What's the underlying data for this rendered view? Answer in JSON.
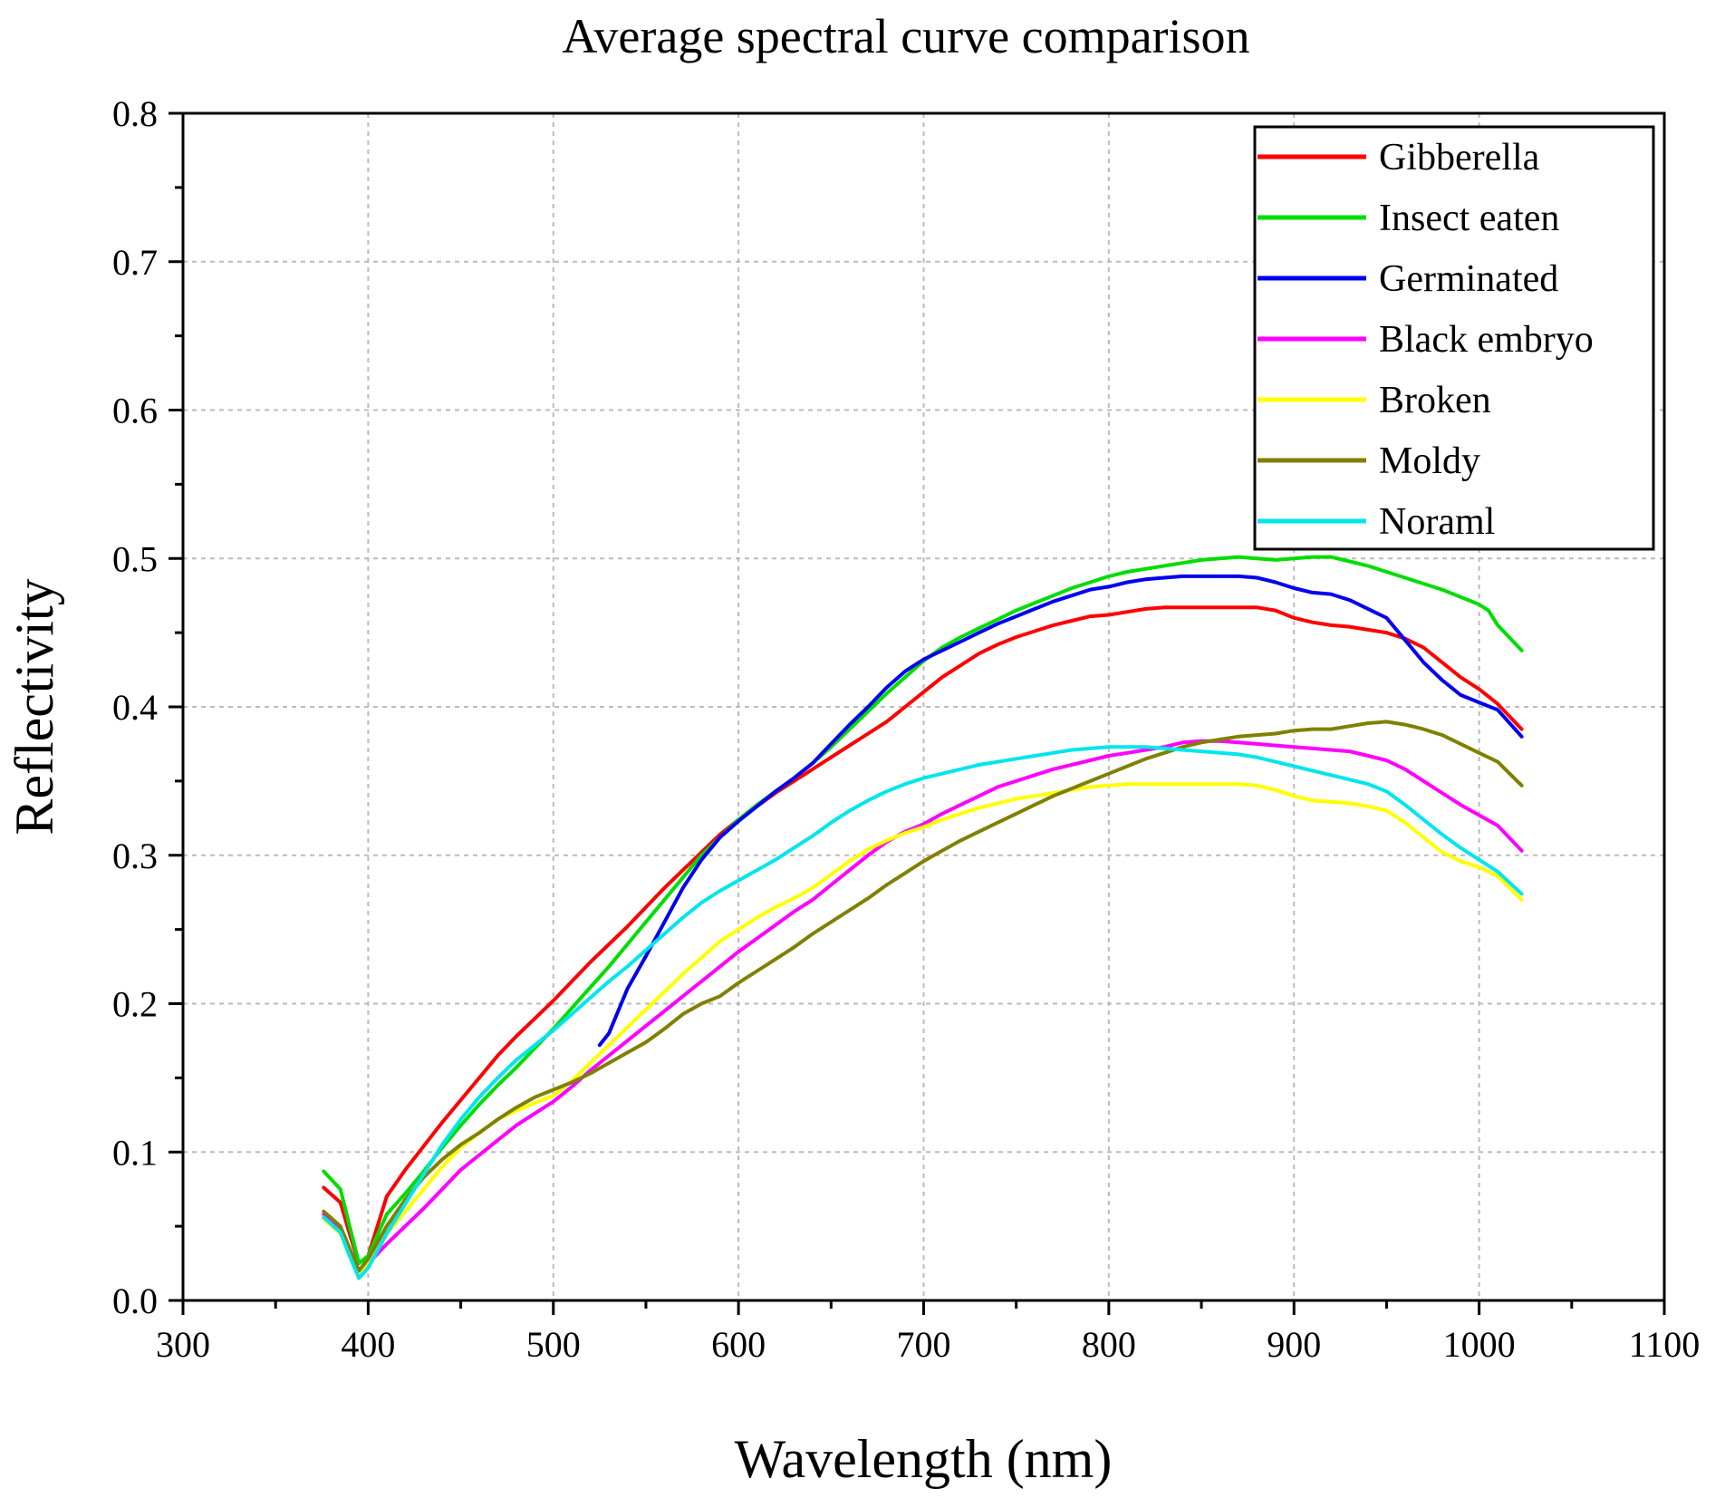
{
  "chart_data": {
    "type": "line",
    "title": "Average spectral curve comparison",
    "xlabel": "Wavelength (nm)",
    "ylabel": "Reflectivity",
    "xlim": [
      300,
      1100
    ],
    "ylim": [
      0.0,
      0.8
    ],
    "xticks": [
      "300",
      "400",
      "500",
      "600",
      "700",
      "800",
      "900",
      "1000",
      "1100"
    ],
    "yticks": [
      "0.0",
      "0.1",
      "0.2",
      "0.3",
      "0.4",
      "0.5",
      "0.6",
      "0.7",
      "0.8"
    ],
    "grid": true,
    "legend_position": "top-right",
    "series": [
      {
        "name": "Gibberella",
        "color": "#ff0000",
        "x": [
          376,
          385,
          390,
          395,
          400,
          405,
          410,
          420,
          430,
          440,
          450,
          460,
          470,
          480,
          490,
          500,
          510,
          520,
          530,
          540,
          550,
          560,
          570,
          580,
          590,
          600,
          610,
          620,
          630,
          640,
          650,
          660,
          670,
          680,
          690,
          700,
          710,
          720,
          730,
          740,
          750,
          760,
          770,
          780,
          790,
          800,
          810,
          820,
          830,
          840,
          850,
          860,
          870,
          880,
          890,
          900,
          910,
          920,
          930,
          940,
          950,
          960,
          970,
          980,
          990,
          1000,
          1010,
          1023
        ],
        "y": [
          0.076,
          0.066,
          0.045,
          0.025,
          0.03,
          0.05,
          0.07,
          0.088,
          0.104,
          0.12,
          0.135,
          0.15,
          0.165,
          0.178,
          0.19,
          0.202,
          0.215,
          0.228,
          0.24,
          0.252,
          0.265,
          0.278,
          0.29,
          0.302,
          0.314,
          0.324,
          0.333,
          0.342,
          0.35,
          0.358,
          0.366,
          0.374,
          0.382,
          0.39,
          0.4,
          0.41,
          0.42,
          0.428,
          0.436,
          0.442,
          0.447,
          0.451,
          0.455,
          0.458,
          0.461,
          0.462,
          0.464,
          0.466,
          0.467,
          0.467,
          0.467,
          0.467,
          0.467,
          0.467,
          0.465,
          0.46,
          0.457,
          0.455,
          0.454,
          0.452,
          0.45,
          0.446,
          0.44,
          0.43,
          0.42,
          0.412,
          0.402,
          0.385
        ]
      },
      {
        "name": "Insect eaten",
        "color": "#00dd00",
        "x": [
          376,
          385,
          390,
          395,
          400,
          410,
          420,
          430,
          440,
          450,
          460,
          470,
          480,
          490,
          500,
          510,
          520,
          530,
          540,
          550,
          560,
          570,
          580,
          590,
          600,
          610,
          620,
          630,
          640,
          650,
          660,
          670,
          680,
          690,
          700,
          710,
          720,
          730,
          740,
          750,
          760,
          770,
          780,
          790,
          800,
          810,
          820,
          830,
          840,
          850,
          860,
          870,
          880,
          890,
          900,
          910,
          920,
          930,
          940,
          950,
          960,
          970,
          980,
          990,
          1000,
          1005,
          1010,
          1023
        ],
        "y": [
          0.087,
          0.075,
          0.05,
          0.025,
          0.03,
          0.058,
          0.072,
          0.087,
          0.103,
          0.118,
          0.132,
          0.145,
          0.157,
          0.17,
          0.183,
          0.197,
          0.211,
          0.225,
          0.24,
          0.255,
          0.27,
          0.285,
          0.3,
          0.312,
          0.324,
          0.334,
          0.343,
          0.352,
          0.362,
          0.373,
          0.385,
          0.397,
          0.409,
          0.42,
          0.431,
          0.44,
          0.447,
          0.453,
          0.459,
          0.465,
          0.47,
          0.475,
          0.48,
          0.484,
          0.488,
          0.491,
          0.493,
          0.495,
          0.497,
          0.499,
          0.5,
          0.501,
          0.5,
          0.499,
          0.5,
          0.501,
          0.501,
          0.498,
          0.495,
          0.491,
          0.487,
          0.483,
          0.479,
          0.474,
          0.469,
          0.465,
          0.455,
          0.438
        ]
      },
      {
        "name": "Germinated",
        "color": "#0000ee",
        "x": [
          525,
          530,
          540,
          550,
          560,
          570,
          580,
          590,
          600,
          610,
          620,
          630,
          640,
          650,
          660,
          670,
          680,
          690,
          700,
          710,
          720,
          730,
          740,
          750,
          760,
          770,
          780,
          790,
          800,
          810,
          820,
          830,
          840,
          850,
          860,
          870,
          880,
          890,
          900,
          910,
          920,
          930,
          940,
          950,
          960,
          970,
          980,
          990,
          1000,
          1010,
          1023
        ],
        "y": [
          0.172,
          0.18,
          0.21,
          0.232,
          0.255,
          0.278,
          0.297,
          0.312,
          0.323,
          0.333,
          0.343,
          0.352,
          0.362,
          0.375,
          0.388,
          0.4,
          0.413,
          0.424,
          0.432,
          0.438,
          0.444,
          0.45,
          0.456,
          0.461,
          0.466,
          0.471,
          0.475,
          0.479,
          0.481,
          0.484,
          0.486,
          0.487,
          0.488,
          0.488,
          0.488,
          0.488,
          0.487,
          0.484,
          0.48,
          0.477,
          0.476,
          0.472,
          0.466,
          0.46,
          0.445,
          0.43,
          0.418,
          0.408,
          0.403,
          0.398,
          0.38
        ]
      },
      {
        "name": "Black embryo",
        "color": "#ff00ff",
        "x": [
          376,
          385,
          390,
          395,
          400,
          410,
          420,
          430,
          440,
          450,
          460,
          470,
          480,
          490,
          500,
          510,
          520,
          530,
          540,
          550,
          560,
          570,
          580,
          590,
          600,
          610,
          620,
          630,
          640,
          650,
          660,
          670,
          680,
          690,
          700,
          710,
          720,
          730,
          740,
          750,
          760,
          770,
          780,
          790,
          800,
          810,
          820,
          830,
          840,
          850,
          860,
          870,
          880,
          890,
          900,
          910,
          920,
          930,
          940,
          950,
          960,
          970,
          980,
          990,
          1000,
          1010,
          1023
        ],
        "y": [
          0.058,
          0.048,
          0.035,
          0.02,
          0.025,
          0.038,
          0.05,
          0.062,
          0.075,
          0.088,
          0.098,
          0.108,
          0.118,
          0.126,
          0.134,
          0.144,
          0.155,
          0.165,
          0.175,
          0.185,
          0.195,
          0.205,
          0.215,
          0.225,
          0.235,
          0.244,
          0.253,
          0.262,
          0.27,
          0.28,
          0.29,
          0.3,
          0.309,
          0.316,
          0.321,
          0.328,
          0.334,
          0.34,
          0.346,
          0.35,
          0.354,
          0.358,
          0.361,
          0.364,
          0.367,
          0.369,
          0.371,
          0.373,
          0.376,
          0.377,
          0.377,
          0.376,
          0.375,
          0.374,
          0.373,
          0.372,
          0.371,
          0.37,
          0.367,
          0.364,
          0.358,
          0.35,
          0.342,
          0.334,
          0.327,
          0.32,
          0.303
        ]
      },
      {
        "name": "Broken",
        "color": "#ffff00",
        "x": [
          376,
          385,
          390,
          395,
          400,
          410,
          420,
          430,
          440,
          450,
          460,
          470,
          480,
          490,
          500,
          510,
          520,
          530,
          540,
          550,
          560,
          570,
          580,
          590,
          600,
          610,
          620,
          630,
          640,
          650,
          660,
          670,
          680,
          690,
          700,
          710,
          720,
          730,
          740,
          750,
          760,
          770,
          780,
          790,
          800,
          810,
          820,
          830,
          840,
          850,
          860,
          870,
          880,
          890,
          900,
          910,
          920,
          930,
          940,
          950,
          960,
          970,
          980,
          990,
          1000,
          1010,
          1023
        ],
        "y": [
          0.055,
          0.045,
          0.03,
          0.018,
          0.025,
          0.045,
          0.06,
          0.075,
          0.09,
          0.103,
          0.113,
          0.122,
          0.128,
          0.133,
          0.138,
          0.148,
          0.16,
          0.172,
          0.184,
          0.196,
          0.208,
          0.22,
          0.231,
          0.242,
          0.25,
          0.258,
          0.265,
          0.271,
          0.278,
          0.287,
          0.296,
          0.304,
          0.31,
          0.315,
          0.319,
          0.324,
          0.328,
          0.332,
          0.335,
          0.338,
          0.34,
          0.342,
          0.344,
          0.346,
          0.347,
          0.348,
          0.348,
          0.348,
          0.348,
          0.348,
          0.348,
          0.348,
          0.347,
          0.344,
          0.34,
          0.337,
          0.336,
          0.335,
          0.333,
          0.33,
          0.322,
          0.312,
          0.302,
          0.296,
          0.292,
          0.286,
          0.27
        ]
      },
      {
        "name": "Moldy",
        "color": "#808000",
        "x": [
          376,
          385,
          390,
          395,
          400,
          410,
          420,
          430,
          440,
          450,
          460,
          470,
          480,
          490,
          500,
          510,
          520,
          530,
          540,
          550,
          560,
          570,
          580,
          590,
          600,
          610,
          620,
          630,
          640,
          650,
          660,
          670,
          680,
          690,
          700,
          710,
          720,
          730,
          740,
          750,
          760,
          770,
          780,
          790,
          800,
          810,
          820,
          830,
          840,
          850,
          860,
          870,
          880,
          890,
          900,
          910,
          920,
          930,
          940,
          950,
          960,
          970,
          980,
          990,
          1000,
          1010,
          1023
        ],
        "y": [
          0.06,
          0.05,
          0.035,
          0.02,
          0.028,
          0.05,
          0.068,
          0.083,
          0.095,
          0.105,
          0.113,
          0.122,
          0.13,
          0.137,
          0.142,
          0.147,
          0.153,
          0.16,
          0.167,
          0.174,
          0.183,
          0.193,
          0.2,
          0.205,
          0.214,
          0.222,
          0.23,
          0.238,
          0.247,
          0.255,
          0.263,
          0.271,
          0.28,
          0.288,
          0.296,
          0.303,
          0.31,
          0.316,
          0.322,
          0.328,
          0.334,
          0.34,
          0.345,
          0.35,
          0.355,
          0.36,
          0.365,
          0.369,
          0.373,
          0.376,
          0.378,
          0.38,
          0.381,
          0.382,
          0.384,
          0.385,
          0.385,
          0.387,
          0.389,
          0.39,
          0.388,
          0.385,
          0.381,
          0.375,
          0.369,
          0.363,
          0.347
        ]
      },
      {
        "name": "Noraml",
        "color": "#00e5ee",
        "x": [
          376,
          385,
          390,
          395,
          400,
          410,
          420,
          430,
          440,
          450,
          460,
          470,
          480,
          490,
          500,
          510,
          520,
          530,
          540,
          550,
          560,
          570,
          580,
          590,
          600,
          610,
          620,
          630,
          640,
          650,
          660,
          670,
          680,
          690,
          700,
          710,
          720,
          730,
          740,
          750,
          760,
          770,
          780,
          790,
          800,
          810,
          820,
          830,
          840,
          850,
          860,
          870,
          880,
          890,
          900,
          910,
          920,
          930,
          940,
          950,
          960,
          970,
          980,
          990,
          1000,
          1010,
          1023
        ],
        "y": [
          0.056,
          0.046,
          0.03,
          0.015,
          0.022,
          0.045,
          0.065,
          0.085,
          0.105,
          0.122,
          0.137,
          0.15,
          0.162,
          0.172,
          0.182,
          0.193,
          0.204,
          0.215,
          0.225,
          0.236,
          0.247,
          0.258,
          0.268,
          0.276,
          0.283,
          0.29,
          0.297,
          0.305,
          0.313,
          0.322,
          0.33,
          0.337,
          0.343,
          0.348,
          0.352,
          0.355,
          0.358,
          0.361,
          0.363,
          0.365,
          0.367,
          0.369,
          0.371,
          0.372,
          0.373,
          0.373,
          0.373,
          0.372,
          0.371,
          0.37,
          0.369,
          0.368,
          0.366,
          0.363,
          0.36,
          0.357,
          0.354,
          0.351,
          0.348,
          0.343,
          0.334,
          0.324,
          0.314,
          0.305,
          0.297,
          0.289,
          0.274
        ]
      }
    ]
  }
}
